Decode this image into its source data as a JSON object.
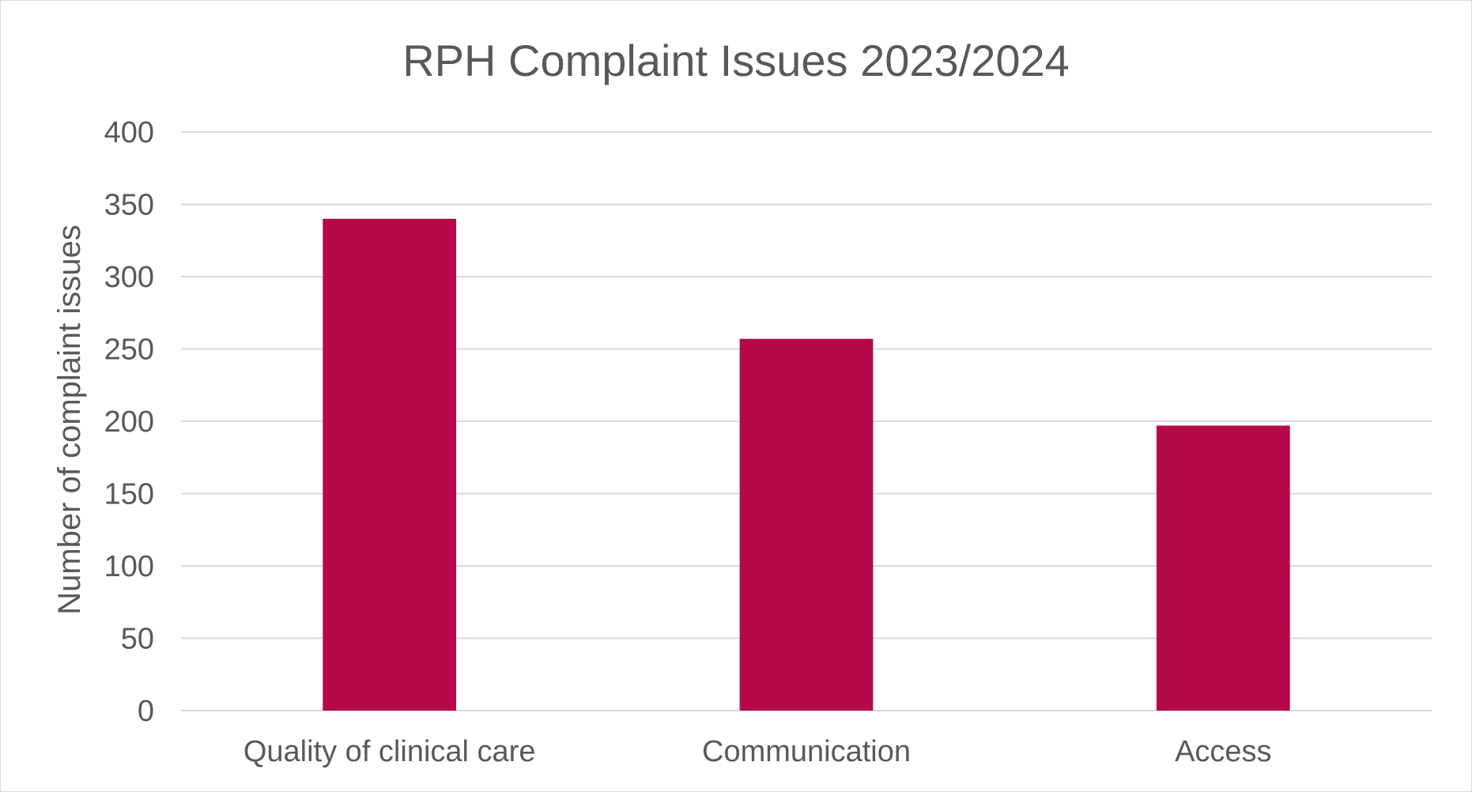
{
  "chart_data": {
    "type": "bar",
    "title": "RPH Complaint Issues 2023/2024",
    "xlabel": "",
    "ylabel": "Number of complaint issues",
    "categories": [
      "Quality of clinical care",
      "Communication",
      "Access"
    ],
    "series": [
      {
        "values": [
          340,
          257,
          197
        ]
      }
    ],
    "ylim": [
      0,
      400
    ],
    "yticks": [
      0,
      50,
      100,
      150,
      200,
      250,
      300,
      350,
      400
    ],
    "grid": true,
    "legend": "none",
    "bar_color": "#b5094a"
  }
}
